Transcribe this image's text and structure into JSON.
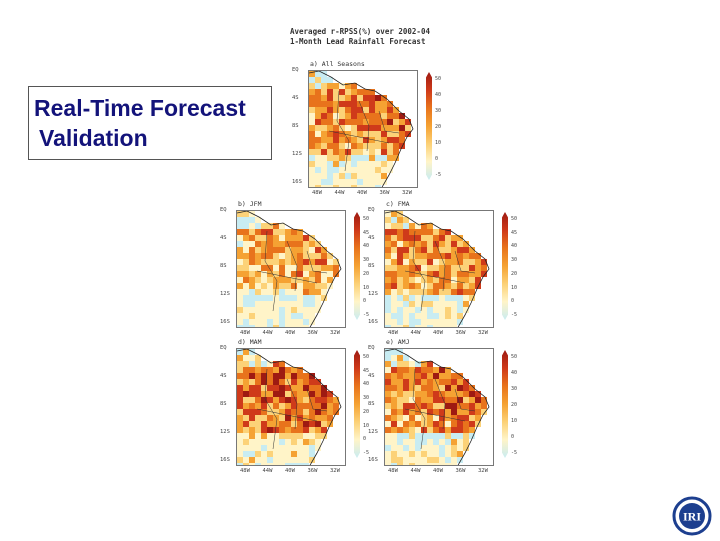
{
  "slide": {
    "title_line1": "Real-Time Forecast",
    "title_line2": " Validation"
  },
  "figure": {
    "title_line1": "Averaged r-RPSS(%) over 2002-04",
    "title_line2": "1-Month Lead Rainfall Forecast"
  },
  "colors": {
    "light_blue": "#c8ecf2",
    "cream": "#fff4c8",
    "light_orange": "#fcd278",
    "orange": "#f5a233",
    "dark_orange": "#e8731c",
    "red": "#cf3a1a",
    "dark_red": "#9e1a12",
    "title_color": "#13137a"
  },
  "logo": {
    "text": "IRI"
  },
  "chart_data": [
    {
      "type": "heatmap",
      "title": "a) All Seasons",
      "y_ticks": [
        "EQ",
        "4S",
        "8S",
        "12S",
        "16S"
      ],
      "x_ticks": [
        "48W",
        "44W",
        "40W",
        "36W",
        "32W"
      ],
      "colorbar_ticks": [
        "50",
        "40",
        "30",
        "20",
        "10",
        "0",
        "-5"
      ],
      "value_range": [
        -5,
        50
      ],
      "seed": 11,
      "intensity": 0.55
    },
    {
      "type": "heatmap",
      "title": "b) JFM",
      "y_ticks": [
        "EQ",
        "4S",
        "8S",
        "12S",
        "16S"
      ],
      "x_ticks": [
        "48W",
        "44W",
        "40W",
        "36W",
        "32W"
      ],
      "colorbar_ticks": [
        "50",
        "45",
        "40",
        "30",
        "20",
        "10",
        "0",
        "-5"
      ],
      "value_range": [
        -5,
        50
      ],
      "seed": 23,
      "intensity": 0.35
    },
    {
      "type": "heatmap",
      "title": "c) FMA",
      "y_ticks": [
        "EQ",
        "4S",
        "8S",
        "12S",
        "16S"
      ],
      "x_ticks": [
        "48W",
        "44W",
        "40W",
        "36W",
        "32W"
      ],
      "colorbar_ticks": [
        "50",
        "45",
        "40",
        "30",
        "20",
        "10",
        "0",
        "-5"
      ],
      "value_range": [
        -5,
        50
      ],
      "seed": 37,
      "intensity": 0.5
    },
    {
      "type": "heatmap",
      "title": "d) MAM",
      "y_ticks": [
        "EQ",
        "4S",
        "8S",
        "12S",
        "16S"
      ],
      "x_ticks": [
        "48W",
        "44W",
        "40W",
        "36W",
        "32W"
      ],
      "colorbar_ticks": [
        "50",
        "45",
        "40",
        "30",
        "20",
        "10",
        "0",
        "-5"
      ],
      "value_range": [
        -5,
        50
      ],
      "seed": 53,
      "intensity": 0.7
    },
    {
      "type": "heatmap",
      "title": "e) AMJ",
      "y_ticks": [
        "EQ",
        "4S",
        "8S",
        "12S",
        "16S"
      ],
      "x_ticks": [
        "48W",
        "44W",
        "40W",
        "36W",
        "32W"
      ],
      "colorbar_ticks": [
        "50",
        "40",
        "30",
        "20",
        "10",
        "0",
        "-5"
      ],
      "value_range": [
        -5,
        50
      ],
      "seed": 71,
      "intensity": 0.6
    }
  ]
}
